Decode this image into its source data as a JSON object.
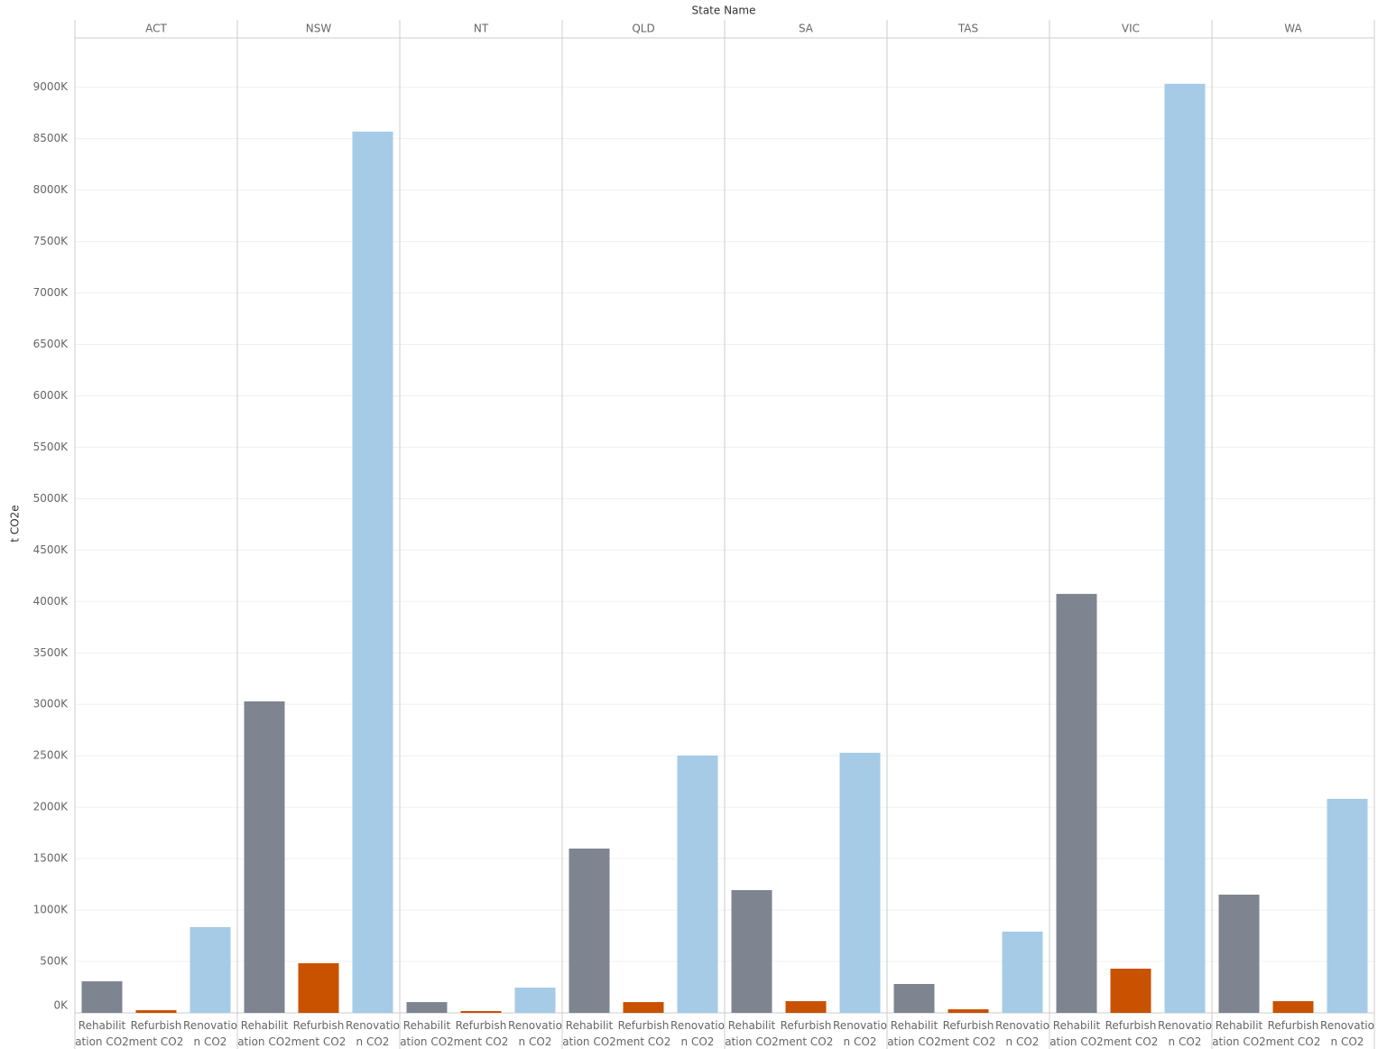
{
  "chart_data": {
    "type": "bar",
    "facet_label": "State Name",
    "y_label": "t CO2e",
    "categories": [
      "Rehabilitation CO2",
      "Refurbishment CO2",
      "Renovation CO2"
    ],
    "colors": [
      "#7f8590",
      "#c85200",
      "#a5cbe6"
    ],
    "panels": [
      {
        "name": "ACT",
        "values": [
          307000,
          26000,
          834000
        ]
      },
      {
        "name": "NSW",
        "values": [
          3029000,
          483000,
          8569000
        ]
      },
      {
        "name": "NT",
        "values": [
          105000,
          18000,
          246000
        ]
      },
      {
        "name": "QLD",
        "values": [
          1598000,
          105000,
          2502000
        ]
      },
      {
        "name": "SA",
        "values": [
          1194000,
          114000,
          2529000
        ]
      },
      {
        "name": "TAS",
        "values": [
          281000,
          35000,
          790000
        ]
      },
      {
        "name": "VIC",
        "values": [
          4074000,
          430000,
          9034000
        ]
      },
      {
        "name": "WA",
        "values": [
          1150000,
          114000,
          2081000
        ]
      }
    ],
    "ylim": [
      0,
      9480000
    ],
    "yticks": [
      {
        "value": 0,
        "label": "0K"
      },
      {
        "value": 500000,
        "label": "500K"
      },
      {
        "value": 1000000,
        "label": "1000K"
      },
      {
        "value": 1500000,
        "label": "1500K"
      },
      {
        "value": 2000000,
        "label": "2000K"
      },
      {
        "value": 2500000,
        "label": "2500K"
      },
      {
        "value": 3000000,
        "label": "3000K"
      },
      {
        "value": 3500000,
        "label": "3500K"
      },
      {
        "value": 4000000,
        "label": "4000K"
      },
      {
        "value": 4500000,
        "label": "4500K"
      },
      {
        "value": 5000000,
        "label": "5000K"
      },
      {
        "value": 5500000,
        "label": "5500K"
      },
      {
        "value": 6000000,
        "label": "6000K"
      },
      {
        "value": 6500000,
        "label": "6500K"
      },
      {
        "value": 7000000,
        "label": "7000K"
      },
      {
        "value": 7500000,
        "label": "7500K"
      },
      {
        "value": 8000000,
        "label": "8000K"
      },
      {
        "value": 8500000,
        "label": "8500K"
      },
      {
        "value": 9000000,
        "label": "9000K"
      }
    ],
    "grid": true
  }
}
